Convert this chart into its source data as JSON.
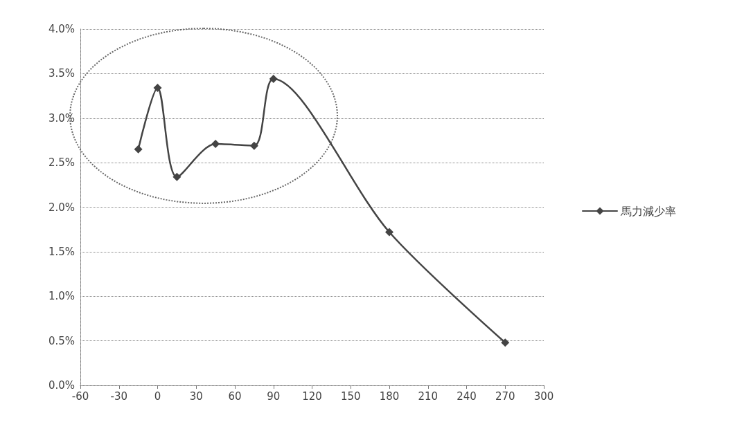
{
  "chart_data": {
    "type": "line",
    "x": [
      -15,
      0,
      15,
      45,
      75,
      90,
      180,
      270
    ],
    "series": [
      {
        "name": "馬力減少率",
        "color": "#444444",
        "values": [
          2.65,
          3.34,
          2.34,
          2.71,
          2.69,
          3.44,
          1.72,
          0.48
        ]
      }
    ],
    "xlim": [
      -60,
      300
    ],
    "xticks": [
      -60,
      -30,
      0,
      30,
      60,
      90,
      120,
      150,
      180,
      210,
      240,
      270,
      300
    ],
    "ylim": [
      0,
      4
    ],
    "yticks": [
      {
        "value": 0,
        "label": "0.0%"
      },
      {
        "value": 0.5,
        "label": "0.5%"
      },
      {
        "value": 1,
        "label": "1.0%"
      },
      {
        "value": 1.5,
        "label": "1.5%"
      },
      {
        "value": 2,
        "label": "2.0%"
      },
      {
        "value": 2.5,
        "label": "2.5%"
      },
      {
        "value": 3,
        "label": "3.0%"
      },
      {
        "value": 3.5,
        "label": "3.5%"
      },
      {
        "value": 4,
        "label": "4.0%"
      }
    ],
    "grid": "y",
    "legend": "right",
    "marker": "diamond",
    "line_style": "solid"
  }
}
